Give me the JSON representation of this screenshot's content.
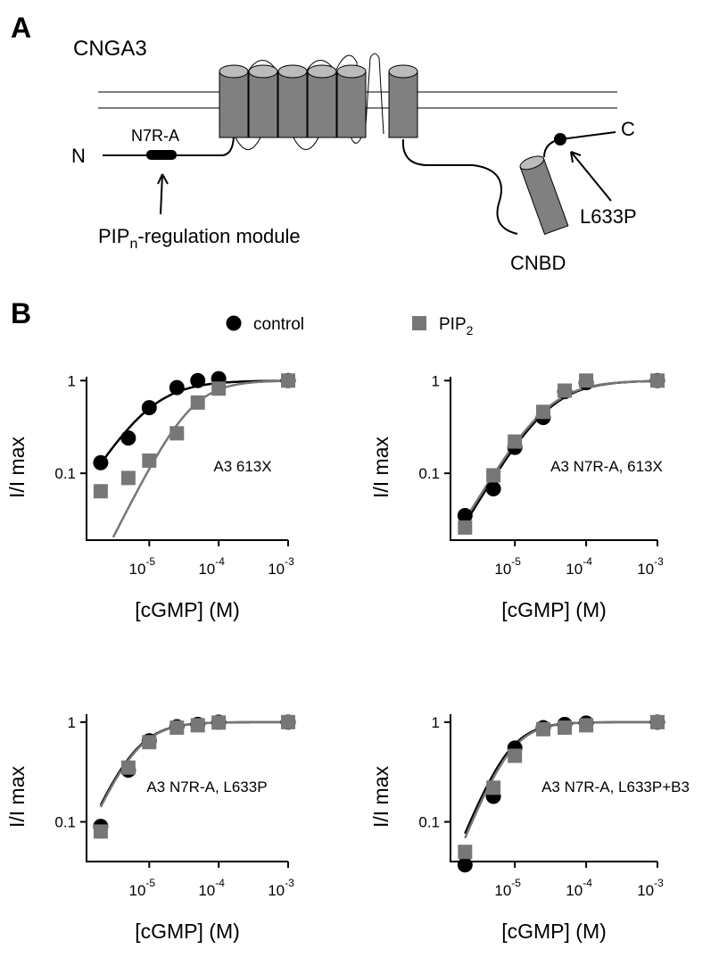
{
  "panel_labels": [
    "A",
    "B"
  ],
  "diagram": {
    "title": "CNGA3",
    "n_terminus": "N",
    "c_terminus": "C",
    "mutation": "N7R-A",
    "module": {
      "text": "PIP",
      "subscript": "n",
      "rest": "-regulation module"
    },
    "point_mutation": "L633P",
    "domain": "CNBD"
  },
  "legend": [
    {
      "name": "control",
      "color": "#000000",
      "marker": "circle"
    },
    {
      "name": "PIP",
      "subscript": "2",
      "color": "#777777",
      "marker": "square"
    }
  ],
  "chart_data": [
    {
      "type": "scatter",
      "annotation": "A3 613X",
      "xlabel": "[cGMP] (M)",
      "ylabel": "I/I max",
      "xscale": "log",
      "yscale": "log",
      "x": [
        2e-06,
        5e-06,
        1e-05,
        2.5e-05,
        5e-05,
        0.0001,
        0.001
      ],
      "xlim": [
        1.25e-06,
        0.001
      ],
      "xticks": [
        {
          "value": 1e-05,
          "label": "10",
          "exponent": "-5"
        },
        {
          "value": 0.0001,
          "label": "10",
          "exponent": "-4"
        },
        {
          "value": 0.001,
          "label": "10",
          "exponent": "-3"
        }
      ],
      "ylim": [
        0.019,
        1.1
      ],
      "yticks": [
        0.1,
        1
      ],
      "series": [
        {
          "color": "#000000",
          "marker": "circle",
          "values": [
            0.13,
            0.24,
            0.51,
            0.84,
            1.0,
            1.05,
            1.0
          ],
          "fit": {
            "K": 1e-05,
            "n": 1.2
          }
        },
        {
          "color": "#777777",
          "marker": "square",
          "values": [
            0.064,
            0.089,
            0.137,
            0.27,
            0.58,
            0.82,
            1.0
          ],
          "fit": {
            "K": 4e-05,
            "n": 1.5
          }
        }
      ]
    },
    {
      "type": "scatter",
      "annotation": "A3 N7R-A, 613X",
      "xlabel": "[cGMP] (M)",
      "ylabel": "I/I max",
      "xscale": "log",
      "yscale": "log",
      "x": [
        2e-06,
        5e-06,
        1e-05,
        2.5e-05,
        5e-05,
        0.0001,
        0.001
      ],
      "xlim": [
        1.25e-06,
        0.001
      ],
      "xticks": [
        {
          "value": 1e-05,
          "label": "10",
          "exponent": "-5"
        },
        {
          "value": 0.0001,
          "label": "10",
          "exponent": "-4"
        },
        {
          "value": 0.001,
          "label": "10",
          "exponent": "-3"
        }
      ],
      "ylim": [
        0.019,
        1.1
      ],
      "yticks": [
        0.1,
        1
      ],
      "series": [
        {
          "color": "#000000",
          "marker": "circle",
          "values": [
            0.035,
            0.068,
            0.19,
            0.4,
            0.76,
            0.95,
            1.0
          ],
          "fit": {
            "K": 3e-05,
            "n": 1.3
          }
        },
        {
          "color": "#777777",
          "marker": "square",
          "values": [
            0.026,
            0.095,
            0.22,
            0.46,
            0.78,
            1.0,
            1.0
          ],
          "fit": {
            "K": 2.8e-05,
            "n": 1.3
          }
        }
      ]
    },
    {
      "type": "scatter",
      "annotation": "A3 N7R-A, L633P",
      "xlabel": "[cGMP] (M)",
      "ylabel": "I/I max",
      "xscale": "log",
      "yscale": "log",
      "x": [
        2e-06,
        5e-06,
        1e-05,
        2.5e-05,
        5e-05,
        0.0001,
        0.001
      ],
      "xlim": [
        1.25e-06,
        0.001
      ],
      "xticks": [
        {
          "value": 1e-05,
          "label": "10",
          "exponent": "-5"
        },
        {
          "value": 0.0001,
          "label": "10",
          "exponent": "-4"
        },
        {
          "value": 0.001,
          "label": "10",
          "exponent": "-3"
        }
      ],
      "ylim": [
        0.04,
        1.2
      ],
      "yticks": [
        0.1,
        1
      ],
      "series": [
        {
          "color": "#000000",
          "marker": "circle",
          "values": [
            0.09,
            0.33,
            0.65,
            0.9,
            0.95,
            1.0,
            1.0
          ],
          "fit": {
            "K": 6e-06,
            "n": 1.6
          }
        },
        {
          "color": "#777777",
          "marker": "square",
          "values": [
            0.08,
            0.35,
            0.63,
            0.88,
            0.93,
            0.99,
            1.0
          ],
          "fit": {
            "K": 6.2e-06,
            "n": 1.6
          }
        }
      ]
    },
    {
      "type": "scatter",
      "annotation": "A3 N7R-A, L633P+B3",
      "xlabel": "[cGMP] (M)",
      "ylabel": "I/I max",
      "xscale": "log",
      "yscale": "log",
      "x": [
        2e-06,
        5e-06,
        1e-05,
        2.5e-05,
        5e-05,
        0.0001,
        0.001
      ],
      "xlim": [
        1.25e-06,
        0.001
      ],
      "xticks": [
        {
          "value": 1e-05,
          "label": "10",
          "exponent": "-5"
        },
        {
          "value": 0.0001,
          "label": "10",
          "exponent": "-4"
        },
        {
          "value": 0.001,
          "label": "10",
          "exponent": "-3"
        }
      ],
      "ylim": [
        0.04,
        1.2
      ],
      "yticks": [
        0.1,
        1
      ],
      "series": [
        {
          "color": "#000000",
          "marker": "circle",
          "values": [
            0.037,
            0.18,
            0.55,
            0.88,
            0.95,
            0.98,
            1.0
          ],
          "fit": {
            "K": 8e-06,
            "n": 1.8
          }
        },
        {
          "color": "#777777",
          "marker": "square",
          "values": [
            0.05,
            0.22,
            0.46,
            0.85,
            0.88,
            0.93,
            1.0
          ],
          "fit": {
            "K": 8.5e-06,
            "n": 1.8
          }
        }
      ]
    }
  ]
}
